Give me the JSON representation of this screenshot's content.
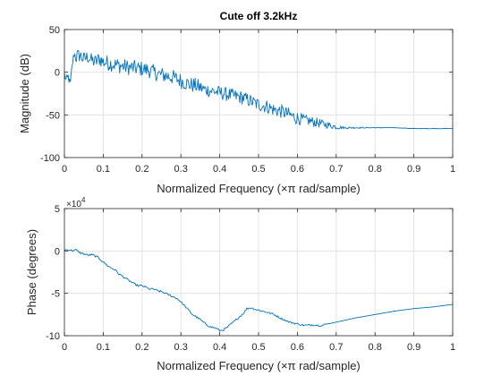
{
  "figure": {
    "background": "#ffffff"
  },
  "chart_data": [
    {
      "type": "line",
      "title": "Cute off 3.2kHz",
      "xlabel": "Normalized Frequency  (×π rad/sample)",
      "ylabel": "Magnitude (dB)",
      "xlim": [
        0,
        1
      ],
      "ylim": [
        -100,
        50
      ],
      "xticks": [
        0,
        0.1,
        0.2,
        0.3,
        0.4,
        0.5,
        0.6,
        0.7,
        0.8,
        0.9,
        1
      ],
      "xtick_labels": [
        "0",
        "0.1",
        "0.2",
        "0.3",
        "0.4",
        "0.5",
        "0.6",
        "0.7",
        "0.8",
        "0.9",
        "1"
      ],
      "yticks": [
        -100,
        -50,
        0,
        50
      ],
      "ytick_labels": [
        "-100",
        "-50",
        "0",
        "50"
      ],
      "grid": true,
      "series": [
        {
          "color": "#0072bd",
          "noisy": true,
          "x": [
            0,
            0.005,
            0.01,
            0.015,
            0.02,
            0.025,
            0.03,
            0.04,
            0.05,
            0.06,
            0.07,
            0.08,
            0.09,
            0.1,
            0.12,
            0.14,
            0.16,
            0.18,
            0.2,
            0.22,
            0.24,
            0.26,
            0.28,
            0.3,
            0.32,
            0.34,
            0.36,
            0.38,
            0.4,
            0.42,
            0.44,
            0.46,
            0.48,
            0.5,
            0.52,
            0.54,
            0.56,
            0.58,
            0.6,
            0.62,
            0.64,
            0.66,
            0.68,
            0.7,
            0.72,
            0.74,
            0.76,
            0.78,
            0.8,
            0.85,
            0.9,
            0.95,
            1.0
          ],
          "y": [
            -2,
            -12,
            -5,
            -15,
            8,
            22,
            18,
            20,
            15,
            18,
            14,
            12,
            16,
            12,
            10,
            8,
            6,
            5,
            4,
            2,
            -2,
            -4,
            -6,
            -10,
            -14,
            -16,
            -20,
            -22,
            -24,
            -26,
            -28,
            -30,
            -34,
            -38,
            -40,
            -44,
            -46,
            -50,
            -54,
            -56,
            -58,
            -60,
            -62,
            -64,
            -65,
            -65,
            -65,
            -65,
            -65,
            -65,
            -66,
            -66,
            -66
          ],
          "noise": [
            3,
            8,
            6,
            5,
            4,
            6,
            10,
            8,
            9,
            8,
            8,
            9,
            9,
            9,
            9,
            9,
            9,
            9,
            9,
            9,
            9,
            9,
            9,
            9,
            9,
            9,
            8,
            8,
            8,
            8,
            8,
            8,
            8,
            8,
            8,
            8,
            8,
            8,
            8,
            6,
            6,
            5,
            4,
            3,
            1.5,
            1,
            0.8,
            0.5,
            0.4,
            0.3,
            0.3,
            0.3,
            0.3
          ]
        }
      ]
    },
    {
      "type": "line",
      "title": "",
      "xlabel": "Normalized Frequency  (×π rad/sample)",
      "ylabel": "Phase (degrees)",
      "y_multiplier": "×10",
      "y_multiplier_exp": "4",
      "xlim": [
        0,
        1
      ],
      "ylim": [
        -10,
        5
      ],
      "xticks": [
        0,
        0.1,
        0.2,
        0.3,
        0.4,
        0.5,
        0.6,
        0.7,
        0.8,
        0.9,
        1
      ],
      "xtick_labels": [
        "0",
        "0.1",
        "0.2",
        "0.3",
        "0.4",
        "0.5",
        "0.6",
        "0.7",
        "0.8",
        "0.9",
        "1"
      ],
      "yticks": [
        -10,
        -5,
        0,
        5
      ],
      "ytick_labels": [
        "-10",
        "-5",
        "0",
        "5"
      ],
      "grid": true,
      "series": [
        {
          "color": "#0072bd",
          "noisy": false,
          "x": [
            0,
            0.01,
            0.02,
            0.03,
            0.04,
            0.05,
            0.06,
            0.07,
            0.08,
            0.09,
            0.1,
            0.11,
            0.12,
            0.13,
            0.14,
            0.15,
            0.16,
            0.17,
            0.18,
            0.19,
            0.2,
            0.21,
            0.22,
            0.23,
            0.24,
            0.25,
            0.26,
            0.27,
            0.28,
            0.29,
            0.3,
            0.31,
            0.32,
            0.33,
            0.34,
            0.35,
            0.36,
            0.37,
            0.38,
            0.39,
            0.4,
            0.41,
            0.42,
            0.43,
            0.44,
            0.45,
            0.46,
            0.47,
            0.48,
            0.5,
            0.52,
            0.54,
            0.56,
            0.58,
            0.6,
            0.62,
            0.64,
            0.66,
            0.7,
            0.75,
            0.8,
            0.85,
            0.9,
            0.95,
            1.0
          ],
          "y": [
            0.1,
            0.15,
            0.05,
            0.1,
            -0.2,
            -0.35,
            -0.5,
            -0.45,
            -0.6,
            -0.9,
            -1.3,
            -1.7,
            -2.0,
            -2.2,
            -2.7,
            -3.0,
            -3.3,
            -3.6,
            -3.9,
            -4.1,
            -4.1,
            -4.3,
            -4.5,
            -4.5,
            -4.7,
            -4.8,
            -5.0,
            -5.2,
            -5.4,
            -5.6,
            -6.0,
            -6.5,
            -7.0,
            -7.5,
            -7.8,
            -8.1,
            -8.5,
            -8.8,
            -9.0,
            -9.1,
            -9.4,
            -9.3,
            -9.0,
            -8.6,
            -8.2,
            -7.8,
            -7.4,
            -6.8,
            -6.7,
            -7.0,
            -7.2,
            -7.5,
            -8.0,
            -8.4,
            -8.6,
            -8.8,
            -8.7,
            -8.8,
            -8.4,
            -7.9,
            -7.5,
            -7.1,
            -6.8,
            -6.6,
            -6.3
          ]
        }
      ]
    }
  ]
}
